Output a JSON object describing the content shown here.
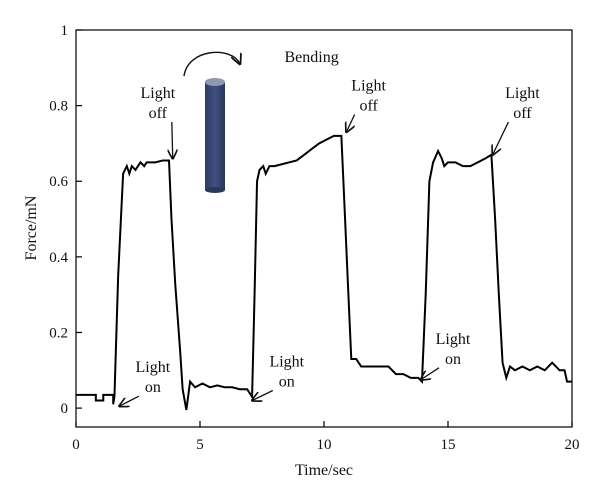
{
  "chart_data": {
    "type": "line",
    "xlabel": "Time/sec",
    "ylabel": "Force/mN",
    "xlim": [
      0,
      20
    ],
    "ylim": [
      -0.05,
      1
    ],
    "xticks": [
      0,
      5,
      10,
      15,
      20
    ],
    "yticks": [
      0,
      0.2,
      0.4,
      0.6,
      0.8,
      1
    ],
    "xtick_labels": [
      "0",
      "5",
      "10",
      "15",
      "20"
    ],
    "ytick_labels": [
      "0",
      "0.2",
      "0.4",
      "0.6",
      "0.8",
      "1"
    ],
    "grid": false,
    "series": [
      {
        "color": "#000000",
        "x": [
          0,
          0.8,
          0.8,
          1.1,
          1.1,
          1.5,
          1.5,
          1.55,
          1.7,
          1.9,
          2.05,
          2.15,
          2.25,
          2.4,
          2.5,
          2.6,
          2.75,
          2.85,
          3.0,
          3.2,
          3.5,
          3.75,
          3.85,
          4.0,
          4.2,
          4.3,
          4.45,
          4.6,
          4.8,
          5.1,
          5.4,
          5.7,
          6.0,
          6.3,
          6.6,
          6.9,
          7.1,
          7.2,
          7.3,
          7.4,
          7.55,
          7.65,
          7.8,
          8.0,
          8.3,
          8.6,
          8.9,
          9.2,
          9.5,
          9.8,
          10.1,
          10.4,
          10.7,
          10.85,
          10.95,
          11.1,
          11.3,
          11.5,
          11.65,
          11.8,
          12.0,
          12.3,
          12.6,
          12.9,
          13.2,
          13.5,
          13.8,
          13.95,
          14.1,
          14.25,
          14.4,
          14.6,
          14.75,
          14.85,
          15.0,
          15.3,
          15.6,
          15.9,
          16.2,
          16.5,
          16.75,
          16.9,
          17.05,
          17.2,
          17.35,
          17.5,
          17.7,
          18.0,
          18.3,
          18.6,
          18.9,
          19.2,
          19.5,
          19.7,
          19.8,
          20.0
        ],
        "y": [
          0.035,
          0.035,
          0.02,
          0.02,
          0.035,
          0.035,
          0.01,
          0.03,
          0.35,
          0.62,
          0.64,
          0.62,
          0.64,
          0.63,
          0.64,
          0.65,
          0.64,
          0.65,
          0.65,
          0.65,
          0.655,
          0.655,
          0.5,
          0.33,
          0.15,
          0.05,
          -0.005,
          0.07,
          0.055,
          0.065,
          0.055,
          0.06,
          0.055,
          0.055,
          0.05,
          0.05,
          0.03,
          0.3,
          0.6,
          0.63,
          0.64,
          0.62,
          0.64,
          0.64,
          0.645,
          0.65,
          0.655,
          0.67,
          0.685,
          0.7,
          0.71,
          0.72,
          0.72,
          0.5,
          0.35,
          0.13,
          0.13,
          0.11,
          0.11,
          0.11,
          0.11,
          0.11,
          0.11,
          0.09,
          0.09,
          0.08,
          0.08,
          0.07,
          0.3,
          0.6,
          0.65,
          0.68,
          0.66,
          0.64,
          0.65,
          0.65,
          0.64,
          0.64,
          0.65,
          0.66,
          0.67,
          0.5,
          0.3,
          0.12,
          0.08,
          0.11,
          0.1,
          0.11,
          0.1,
          0.11,
          0.1,
          0.12,
          0.1,
          0.1,
          0.07,
          0.07
        ]
      }
    ],
    "annotations": [
      {
        "lines": [
          "Light",
          "off"
        ],
        "x": 3.3,
        "y": 0.82,
        "arrow_to": [
          3.9,
          0.66
        ]
      },
      {
        "lines": [
          "Light",
          "off"
        ],
        "x": 11.8,
        "y": 0.84,
        "arrow_to": [
          10.9,
          0.73
        ]
      },
      {
        "lines": [
          "Light",
          "off"
        ],
        "x": 18.0,
        "y": 0.82,
        "arrow_to": [
          16.8,
          0.67
        ]
      },
      {
        "lines": [
          "Light",
          "on"
        ],
        "x": 3.1,
        "y": 0.095,
        "arrow_to": [
          1.75,
          0.005
        ]
      },
      {
        "lines": [
          "Light",
          "on"
        ],
        "x": 8.5,
        "y": 0.11,
        "arrow_to": [
          7.1,
          0.02
        ]
      },
      {
        "lines": [
          "Light",
          "on"
        ],
        "x": 15.2,
        "y": 0.17,
        "arrow_to": [
          13.9,
          0.075
        ]
      },
      {
        "lines": [
          "Bending"
        ],
        "x": 9.5,
        "y": 0.915
      }
    ]
  }
}
